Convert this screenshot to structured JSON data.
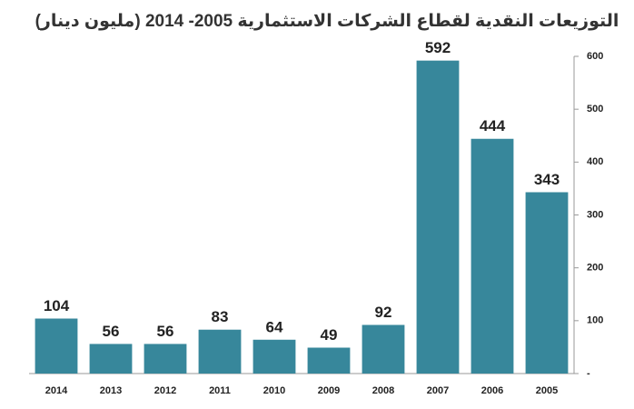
{
  "chart_data": {
    "type": "bar",
    "title": "التوزيعات النقدية لقطاع الشركات الاستثمارية 2005- 2014 (مليون دينار)",
    "categories": [
      "2014",
      "2013",
      "2012",
      "2011",
      "2010",
      "2009",
      "2008",
      "2007",
      "2006",
      "2005"
    ],
    "values": [
      104,
      56,
      56,
      83,
      64,
      49,
      92,
      592,
      444,
      343
    ],
    "color": "#37879b",
    "ylim": [
      0,
      600
    ],
    "yticks": [
      {
        "value": 0,
        "label": "-"
      },
      100,
      200,
      300,
      400,
      500,
      600
    ],
    "y_axis_side": "right",
    "grid": false
  }
}
